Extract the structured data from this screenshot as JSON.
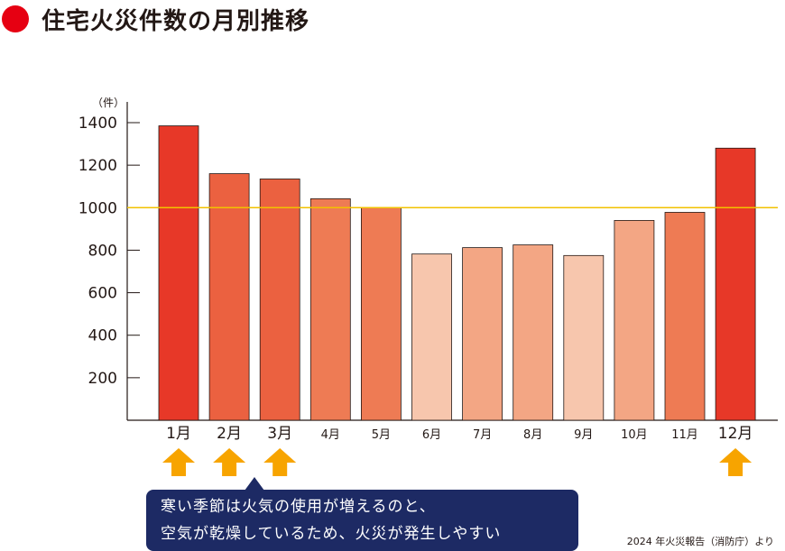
{
  "title": "住宅火災件数の月別推移",
  "colors": {
    "title_dot": "#e60012",
    "reference_line": "#f2c200",
    "arrow": "#f7a400",
    "callout_bg": "#1d2a64"
  },
  "chart_data": {
    "type": "bar",
    "title": "住宅火災件数の月別推移",
    "unit_label": "（件）",
    "categories": [
      "1月",
      "2月",
      "3月",
      "4月",
      "5月",
      "6月",
      "7月",
      "8月",
      "9月",
      "10月",
      "11月",
      "12月"
    ],
    "values": [
      1385,
      1160,
      1135,
      1042,
      1000,
      782,
      812,
      825,
      775,
      940,
      978,
      1280
    ],
    "bar_colors": [
      "#e73828",
      "#eb6140",
      "#eb6140",
      "#ee7b54",
      "#ee7b54",
      "#f7c6ad",
      "#f3a684",
      "#f3a684",
      "#f7c6ad",
      "#f3a684",
      "#ee7b54",
      "#e73828"
    ],
    "yticks": [
      200,
      400,
      600,
      800,
      1000,
      1200,
      1400
    ],
    "ylim": [
      0,
      1400
    ],
    "reference_line": 1000,
    "grid": false,
    "highlighted_months": [
      "1月",
      "2月",
      "3月",
      "12月"
    ]
  },
  "callout": {
    "line1": "寒い季節は火気の使用が増えるのと、",
    "line2": "空気が乾燥しているため、火災が発生しやすい"
  },
  "source": "2024 年火災報告（消防庁）より"
}
